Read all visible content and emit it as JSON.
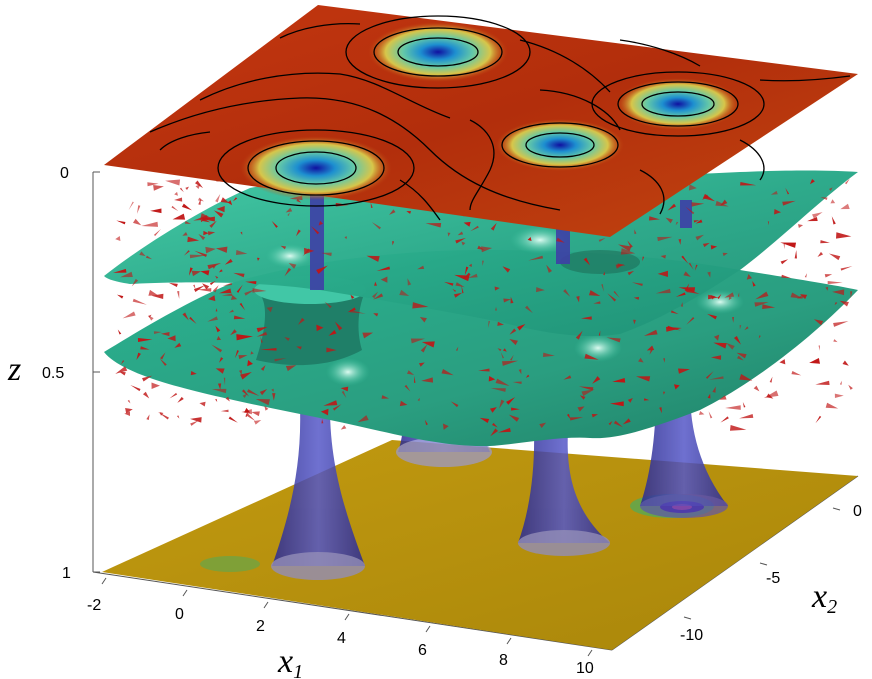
{
  "figure": {
    "z_axis": {
      "label": "z",
      "ticks": [
        "0",
        "0.5",
        "1"
      ]
    },
    "x1_axis": {
      "label": "x",
      "subscript": "1",
      "ticks": [
        "-2",
        "0",
        "2",
        "4",
        "6",
        "8",
        "10"
      ]
    },
    "x2_axis": {
      "label": "x",
      "subscript": "2",
      "ticks": [
        "0",
        "-5",
        "-10"
      ]
    },
    "layers": [
      "top-vorticity-plane-with-streamlines",
      "upper-isosurface",
      "lower-isosurface",
      "bottom-plane"
    ],
    "vortex_count": 4,
    "colors": {
      "top_plane": "#b8340f",
      "isosurface": "#2bb391",
      "bottom_plane": "#b8900b",
      "vortex_tube": "#3e3fa6",
      "arrows": "#c01515",
      "streamline": "#000000"
    }
  }
}
